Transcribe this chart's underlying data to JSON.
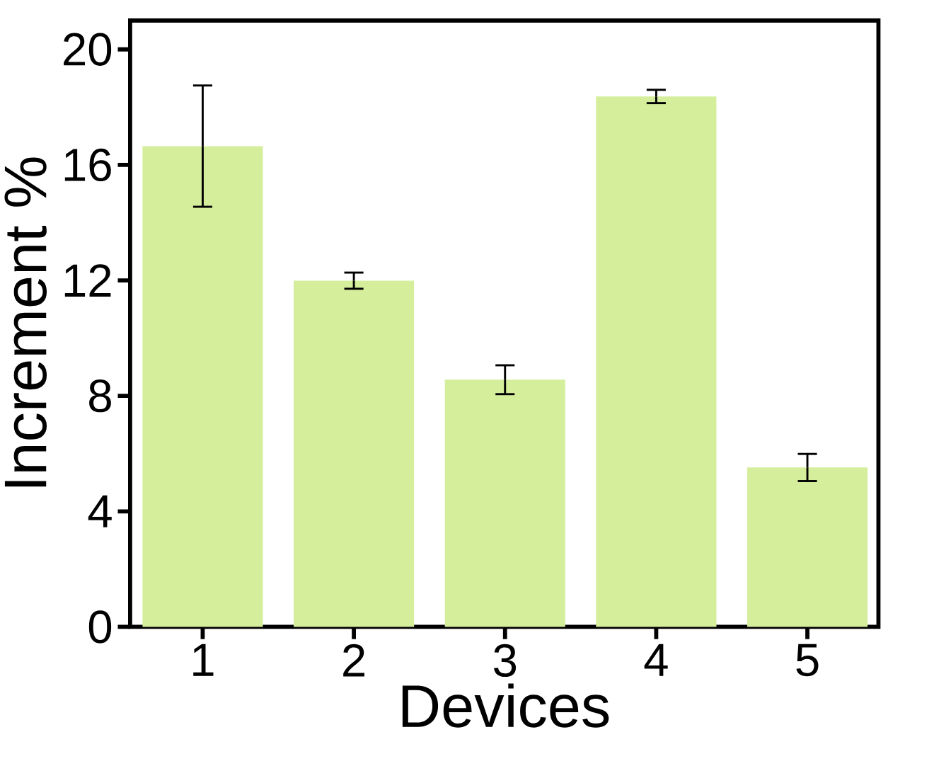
{
  "chart_data": {
    "type": "bar",
    "xlabel": "Devices",
    "ylabel": "Increment %",
    "categories": [
      "1",
      "2",
      "3",
      "4",
      "5"
    ],
    "values": [
      16.65,
      11.99,
      8.56,
      18.37,
      5.52
    ],
    "errors": [
      2.1,
      0.28,
      0.5,
      0.23,
      0.47
    ],
    "color": "#d4ee9c",
    "ylim": [
      0,
      21
    ],
    "yticks": [
      0,
      4,
      8,
      12,
      16,
      20
    ],
    "grid": false
  }
}
